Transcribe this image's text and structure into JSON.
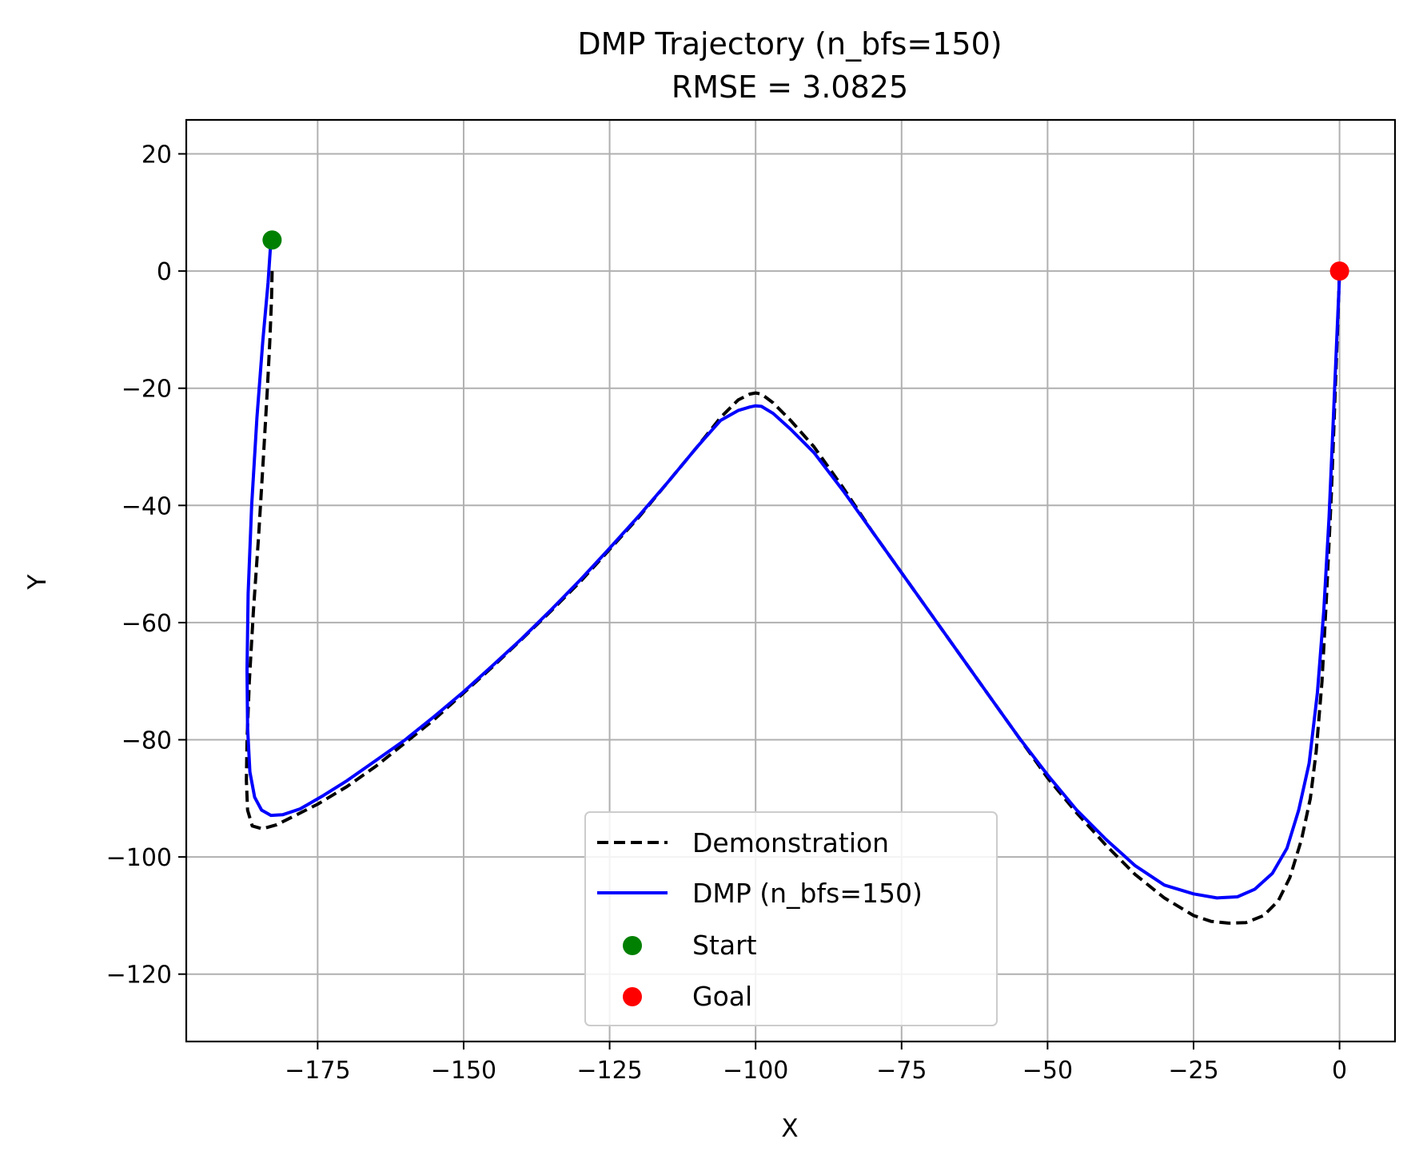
{
  "chart_data": {
    "type": "line",
    "title": "DMP Trajectory (n_bfs=150)",
    "subtitle": "RMSE = 3.0825",
    "xlabel": "X",
    "ylabel": "Y",
    "xlim": [
      -197.5,
      9.5
    ],
    "ylim": [
      -131.5,
      25.8
    ],
    "xticks": [
      -175,
      -150,
      -125,
      -100,
      -75,
      -50,
      -25,
      0
    ],
    "yticks": [
      20,
      0,
      -20,
      -40,
      -60,
      -80,
      -100,
      -120
    ],
    "xtick_labels": [
      "−175",
      "−150",
      "−125",
      "−100",
      "−75",
      "−50",
      "−25",
      "0"
    ],
    "ytick_labels": [
      "20",
      "0",
      "−20",
      "−40",
      "−60",
      "−80",
      "−100",
      "−120"
    ],
    "grid": true,
    "legend_position": "lower-center",
    "series": [
      {
        "name": "Demonstration",
        "style": "dashed",
        "color": "#000000",
        "x": [
          -182.8,
          -182.9,
          -183.2,
          -183.6,
          -184.3,
          -185.1,
          -186.0,
          -186.7,
          -187.1,
          -187.2,
          -187.0,
          -186.2,
          -184.5,
          -182.0,
          -179.0,
          -175.0,
          -170.0,
          -165.0,
          -160.0,
          -155.0,
          -150.0,
          -145.0,
          -140.0,
          -135.0,
          -130.0,
          -125.0,
          -120.0,
          -115.0,
          -110.0,
          -106.0,
          -103.0,
          -101.0,
          -100.0,
          -99.0,
          -97.0,
          -94.0,
          -90.0,
          -85.0,
          -80.0,
          -75.0,
          -70.0,
          -65.0,
          -60.0,
          -55.0,
          -50.0,
          -45.0,
          -40.0,
          -35.0,
          -30.0,
          -25.0,
          -22.0,
          -19.0,
          -16.0,
          -13.0,
          -10.5,
          -8.5,
          -6.5,
          -5.0,
          -4.0,
          -3.0,
          -2.2,
          -1.4,
          -0.8,
          -0.3,
          0.0
        ],
        "y": [
          0.0,
          -5.0,
          -12.0,
          -20.0,
          -32.0,
          -45.0,
          -58.0,
          -70.0,
          -80.0,
          -87.0,
          -92.0,
          -94.7,
          -95.2,
          -94.5,
          -93.0,
          -91.0,
          -88.0,
          -84.5,
          -80.5,
          -76.5,
          -72.0,
          -67.5,
          -62.8,
          -58.0,
          -53.0,
          -47.5,
          -42.0,
          -36.0,
          -30.0,
          -25.0,
          -22.0,
          -21.0,
          -20.8,
          -21.0,
          -22.5,
          -25.5,
          -30.0,
          -37.0,
          -44.5,
          -51.5,
          -58.5,
          -65.5,
          -72.5,
          -79.5,
          -86.5,
          -92.5,
          -98.0,
          -103.0,
          -107.0,
          -110.0,
          -111.0,
          -111.3,
          -111.2,
          -110.0,
          -107.5,
          -103.5,
          -97.0,
          -90.0,
          -82.0,
          -70.0,
          -55.0,
          -38.0,
          -22.0,
          -9.0,
          0.0
        ]
      },
      {
        "name": "DMP (n_bfs=150)",
        "style": "solid",
        "color": "#0000ff",
        "x": [
          -183.0,
          -183.5,
          -184.4,
          -185.4,
          -186.3,
          -186.9,
          -187.1,
          -187.0,
          -186.6,
          -185.8,
          -184.6,
          -183.0,
          -181.0,
          -178.0,
          -174.0,
          -170.0,
          -165.0,
          -160.0,
          -155.0,
          -150.0,
          -145.0,
          -140.0,
          -135.0,
          -130.0,
          -125.0,
          -120.0,
          -115.0,
          -110.0,
          -106.0,
          -103.0,
          -101.0,
          -100.0,
          -99.0,
          -97.0,
          -94.0,
          -90.0,
          -85.0,
          -80.0,
          -75.0,
          -70.0,
          -65.0,
          -60.0,
          -55.0,
          -50.0,
          -45.0,
          -40.0,
          -35.0,
          -30.0,
          -25.0,
          -21.0,
          -17.5,
          -14.5,
          -11.5,
          -9.0,
          -7.0,
          -5.2,
          -3.8,
          -2.7,
          -1.8,
          -1.1,
          -0.5,
          -0.1,
          0.0
        ],
        "y": [
          5.3,
          -2.0,
          -12.0,
          -25.0,
          -40.0,
          -55.0,
          -68.0,
          -78.0,
          -85.5,
          -89.8,
          -92.0,
          -92.9,
          -92.8,
          -91.8,
          -89.5,
          -87.0,
          -83.5,
          -80.0,
          -76.0,
          -71.8,
          -67.3,
          -62.7,
          -57.8,
          -52.7,
          -47.3,
          -41.8,
          -36.0,
          -30.0,
          -25.5,
          -23.8,
          -23.2,
          -23.0,
          -23.1,
          -24.3,
          -27.0,
          -31.0,
          -37.5,
          -44.5,
          -51.5,
          -58.5,
          -65.5,
          -72.5,
          -79.5,
          -86.0,
          -92.0,
          -97.0,
          -101.5,
          -104.8,
          -106.3,
          -107.0,
          -106.8,
          -105.5,
          -102.8,
          -98.5,
          -92.0,
          -84.0,
          -72.0,
          -58.0,
          -42.0,
          -26.0,
          -12.0,
          -3.0,
          0.0
        ]
      }
    ],
    "points": [
      {
        "name": "Start",
        "x": -182.8,
        "y": 5.3,
        "color": "#008000"
      },
      {
        "name": "Goal",
        "x": 0.0,
        "y": 0.0,
        "color": "#ff0000"
      }
    ]
  }
}
